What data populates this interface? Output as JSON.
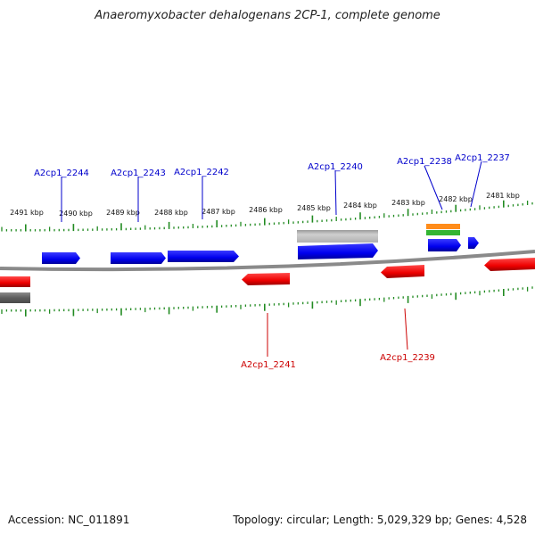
{
  "title": "Anaeromyxobacter dehalogenans 2CP-1, complete genome",
  "footer": {
    "accession": "Accession: NC_011891",
    "summary": "Topology: circular; Length: 5,029,329 bp; Genes: 4,528"
  },
  "colors": {
    "forward_gene": "#0000ee",
    "reverse_gene": "#ee0000",
    "forward_feature": "#b8b8b8",
    "reverse_feature": "#6a6a6a",
    "backbone": "#8a8a8a",
    "tick": "#228b22",
    "rrna": "#ff8c1a",
    "trna": "#33b533"
  },
  "axis": {
    "ticks": [
      {
        "label": "2491 kbp"
      },
      {
        "label": "2490 kbp"
      },
      {
        "label": "2489 kbp"
      },
      {
        "label": "2488 kbp"
      },
      {
        "label": "2487 kbp"
      },
      {
        "label": "2486 kbp"
      },
      {
        "label": "2485 kbp"
      },
      {
        "label": "2484 kbp"
      },
      {
        "label": "2483 kbp"
      },
      {
        "label": "2482 kbp"
      },
      {
        "label": "2481 kbp"
      }
    ]
  },
  "genes": {
    "forward_labels": [
      {
        "label": "A2cp1_2244"
      },
      {
        "label": "A2cp1_2243"
      },
      {
        "label": "A2cp1_2242"
      },
      {
        "label": "A2cp1_2240"
      },
      {
        "label": "A2cp1_2238"
      },
      {
        "label": "A2cp1_2237"
      }
    ],
    "reverse_labels": [
      {
        "label": "A2cp1_2241"
      },
      {
        "label": "A2cp1_2239"
      }
    ]
  }
}
